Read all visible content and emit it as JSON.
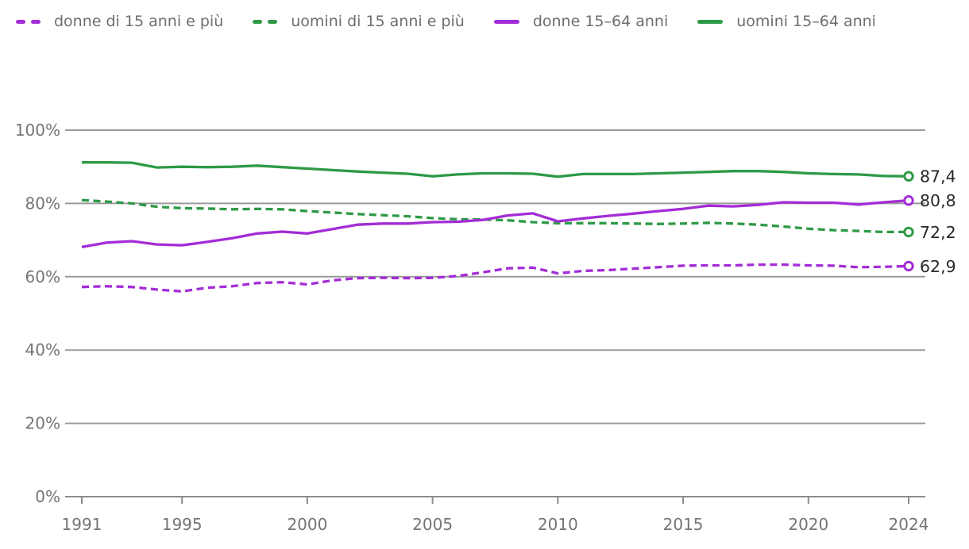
{
  "colors": {
    "purple": "#a32cd6",
    "green": "#2e9a47",
    "grid": "#9a9a9a",
    "axis": "#8c8c8c",
    "axis_text": "#757575",
    "value_label": "#282828",
    "background": "#ffffff"
  },
  "legend": {
    "items": [
      {
        "label": "donne di 15 anni e più",
        "color": "#a32cd6",
        "style": "dashed"
      },
      {
        "label": "uomini di 15 anni e più",
        "color": "#2e9a47",
        "style": "dashed"
      },
      {
        "label": "donne 15–64 anni",
        "color": "#a32cd6",
        "style": "solid"
      },
      {
        "label": "uomini 15–64 anni",
        "color": "#2e9a47",
        "style": "solid"
      }
    ]
  },
  "chart_data": {
    "type": "line",
    "title": "",
    "xlabel": "",
    "ylabel": "",
    "ylim": [
      0,
      100
    ],
    "grid": true,
    "legend_position": "top",
    "x": [
      1991,
      1992,
      1993,
      1994,
      1995,
      1996,
      1997,
      1998,
      1999,
      2000,
      2001,
      2002,
      2003,
      2004,
      2005,
      2006,
      2007,
      2008,
      2009,
      2010,
      2011,
      2012,
      2013,
      2014,
      2015,
      2016,
      2017,
      2018,
      2019,
      2020,
      2021,
      2022,
      2023,
      2024
    ],
    "x_ticks": [
      {
        "label": "1991",
        "value": 1991
      },
      {
        "label": "1995",
        "value": 1995
      },
      {
        "label": "2000",
        "value": 2000
      },
      {
        "label": "2005",
        "value": 2005
      },
      {
        "label": "2010",
        "value": 2010
      },
      {
        "label": "2015",
        "value": 2015
      },
      {
        "label": "2020",
        "value": 2020
      },
      {
        "label": "2024",
        "value": 2024
      }
    ],
    "y_ticks": [
      {
        "label": "100%",
        "value": 100
      },
      {
        "label": "80%",
        "value": 80
      },
      {
        "label": "60%",
        "value": 60
      },
      {
        "label": "40%",
        "value": 40
      },
      {
        "label": "20%",
        "value": 20
      },
      {
        "label": "0%",
        "value": 0
      }
    ],
    "series": [
      {
        "name": "uomini 15–64 anni",
        "color": "#2e9a47",
        "style": "solid",
        "end_label": "87,4",
        "values": [
          91.2,
          91.2,
          91.1,
          89.8,
          90.0,
          89.9,
          90.0,
          90.3,
          89.9,
          89.5,
          89.1,
          88.7,
          88.4,
          88.1,
          87.4,
          87.9,
          88.2,
          88.2,
          88.1,
          87.3,
          88.0,
          88.0,
          88.0,
          88.2,
          88.4,
          88.6,
          88.8,
          88.8,
          88.6,
          88.2,
          88.0,
          87.9,
          87.5,
          87.4
        ]
      },
      {
        "name": "uomini di 15 anni e più",
        "color": "#2e9a47",
        "style": "dashed",
        "end_label": "72,2",
        "values": [
          80.9,
          80.5,
          80.0,
          79.1,
          78.7,
          78.6,
          78.4,
          78.5,
          78.4,
          77.9,
          77.5,
          77.1,
          76.8,
          76.5,
          76.0,
          75.7,
          75.6,
          75.4,
          74.9,
          74.6,
          74.6,
          74.6,
          74.5,
          74.4,
          74.5,
          74.7,
          74.5,
          74.2,
          73.7,
          73.1,
          72.7,
          72.5,
          72.2,
          72.2
        ]
      },
      {
        "name": "donne di 15 anni e più",
        "color": "#a32cd6",
        "style": "dashed",
        "end_label": "62,9",
        "values": [
          57.2,
          57.4,
          57.2,
          56.5,
          56.0,
          57.0,
          57.4,
          58.3,
          58.5,
          57.9,
          59.0,
          59.6,
          59.7,
          59.6,
          59.7,
          60.2,
          61.2,
          62.3,
          62.5,
          60.9,
          61.6,
          61.8,
          62.2,
          62.6,
          63.0,
          63.1,
          63.1,
          63.3,
          63.3,
          63.1,
          63.0,
          62.6,
          62.7,
          62.9
        ]
      },
      {
        "name": "donne 15–64 anni",
        "color": "#a32cd6",
        "style": "solid",
        "end_label": "80,8",
        "values": [
          68.1,
          69.3,
          69.7,
          68.8,
          68.6,
          69.5,
          70.5,
          71.8,
          72.3,
          71.8,
          73.0,
          74.2,
          74.5,
          74.5,
          74.9,
          75.0,
          75.5,
          76.7,
          77.3,
          75.1,
          75.9,
          76.6,
          77.2,
          77.9,
          78.5,
          79.4,
          79.2,
          79.6,
          80.3,
          80.2,
          80.2,
          79.7,
          80.3,
          80.8
        ]
      }
    ]
  }
}
